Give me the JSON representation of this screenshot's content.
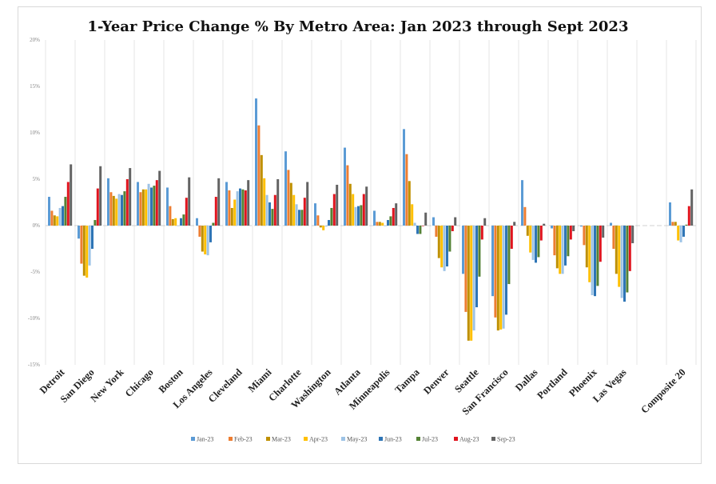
{
  "chart_data": {
    "type": "bar",
    "title": "1-Year Price Change % By Metro Area: Jan 2023 through Sept 2023",
    "xlabel": "",
    "ylabel": "",
    "ylim": [
      -15,
      20
    ],
    "yticks": [
      20,
      15,
      10,
      5,
      0,
      -5,
      -10,
      -15
    ],
    "ytick_labels": [
      "20%",
      "15%",
      "10%",
      "5%",
      "0%",
      "-5%",
      "-10%",
      "-15%"
    ],
    "grid": "vertical category separators",
    "legend_position": "bottom",
    "categories": [
      "Detroit",
      "San Diego",
      "New York",
      "Chicago",
      "Boston",
      "Los Angeles",
      "Cleveland",
      "Miami",
      "Charlotte",
      "Washington",
      "Atlanta",
      "Minneapolis",
      "Tampa",
      "Denver",
      "Seattle",
      "San Francisco",
      "Dallas",
      "Portland",
      "Phoenix",
      "Las Vegas",
      "",
      "Composite 20"
    ],
    "series": [
      {
        "name": "Jan-23",
        "color": "#5b9bd5",
        "values": [
          3.1,
          -1.4,
          5.1,
          4.7,
          4.1,
          0.8,
          4.7,
          13.7,
          8.0,
          2.4,
          8.4,
          1.6,
          10.4,
          0.9,
          -5.2,
          -7.6,
          4.9,
          -0.3,
          -0.1,
          0.3,
          null,
          2.5
        ]
      },
      {
        "name": "Feb-23",
        "color": "#ed7d31",
        "values": [
          1.6,
          -4.1,
          3.6,
          3.6,
          2.1,
          -1.2,
          3.8,
          10.8,
          6.0,
          1.1,
          6.5,
          0.4,
          7.7,
          -1.2,
          -9.3,
          -9.9,
          2.0,
          -3.2,
          -2.1,
          -2.5,
          null,
          0.4
        ]
      },
      {
        "name": "Mar-23",
        "color": "#bf9000",
        "values": [
          1.1,
          -5.4,
          3.2,
          3.9,
          0.7,
          -2.8,
          1.9,
          7.6,
          4.6,
          -0.2,
          4.5,
          0.4,
          4.8,
          -3.5,
          -12.4,
          -11.3,
          -1.1,
          -4.6,
          -4.5,
          -5.2,
          null,
          0.4
        ]
      },
      {
        "name": "Apr-23",
        "color": "#ffc000",
        "values": [
          1.0,
          -5.6,
          2.9,
          3.9,
          0.8,
          -3.1,
          2.8,
          5.1,
          3.3,
          -0.5,
          3.4,
          0.3,
          2.3,
          -4.5,
          -12.4,
          -11.2,
          -2.9,
          -5.2,
          -6.1,
          -6.6,
          null,
          -1.6
        ]
      },
      {
        "name": "May-23",
        "color": "#9dc3e6",
        "values": [
          1.9,
          -4.3,
          3.4,
          4.5,
          0.0,
          -3.2,
          3.7,
          3.3,
          2.3,
          -0.1,
          2.0,
          0.0,
          0.3,
          -4.9,
          -11.3,
          -11.1,
          -3.7,
          -5.2,
          -7.5,
          -7.8,
          null,
          -1.8
        ]
      },
      {
        "name": "Jun-23",
        "color": "#2e75b6",
        "values": [
          2.1,
          -2.5,
          3.3,
          4.1,
          0.8,
          -1.8,
          4.0,
          2.5,
          1.7,
          0.6,
          2.1,
          0.6,
          -0.9,
          -4.4,
          -8.8,
          -9.6,
          -4.0,
          -4.3,
          -7.6,
          -8.2,
          null,
          -1.2
        ]
      },
      {
        "name": "Jul-23",
        "color": "#548235",
        "values": [
          3.1,
          0.6,
          3.7,
          4.3,
          1.2,
          0.3,
          3.9,
          1.8,
          1.7,
          1.9,
          2.2,
          1.0,
          -0.9,
          -2.8,
          -5.5,
          -6.3,
          -3.4,
          -3.3,
          -6.5,
          -7.2,
          null,
          0.1
        ]
      },
      {
        "name": "Aug-23",
        "color": "#e0141e",
        "values": [
          4.7,
          4.0,
          5.0,
          4.9,
          3.0,
          3.1,
          3.8,
          3.3,
          3.0,
          3.4,
          3.4,
          1.9,
          0.0,
          -0.6,
          -1.5,
          -2.5,
          -1.6,
          -1.5,
          -3.9,
          -4.9,
          null,
          2.1
        ]
      },
      {
        "name": "Sep-23",
        "color": "#636363",
        "values": [
          6.6,
          6.4,
          6.2,
          5.9,
          5.2,
          5.1,
          4.9,
          5.0,
          4.7,
          4.4,
          4.2,
          2.4,
          1.4,
          0.9,
          0.8,
          0.4,
          0.2,
          -0.6,
          -1.3,
          -1.9,
          null,
          3.9
        ]
      }
    ]
  }
}
